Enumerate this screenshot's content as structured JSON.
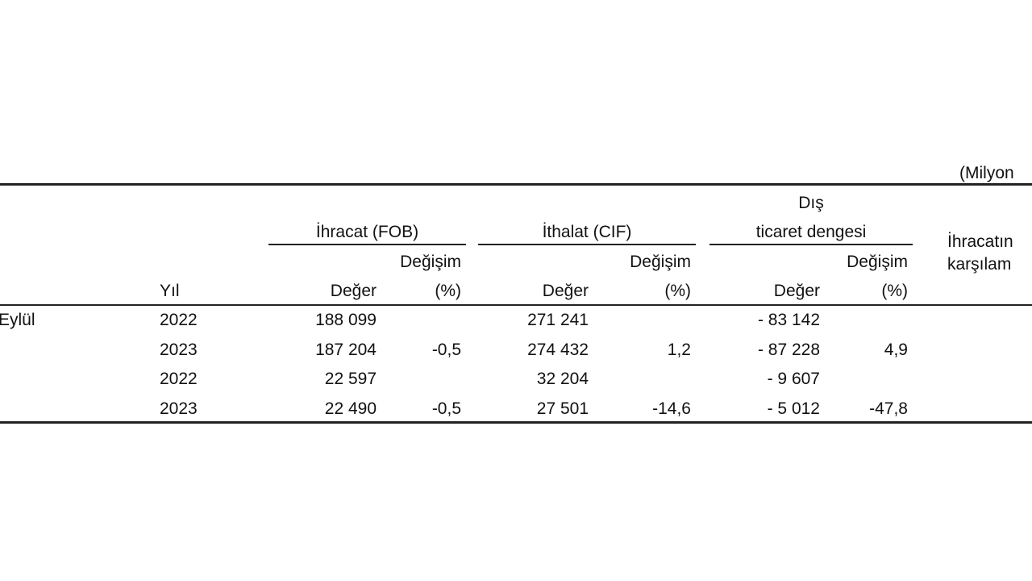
{
  "unit_note": "(Milyon",
  "columns": {
    "year": "Yıl",
    "exports": "İhracat (FOB)",
    "imports": "İthalat (CIF)",
    "balance_line1": "Dış",
    "balance_line2": "ticaret dengesi",
    "value": "Değer",
    "change": "Değişim",
    "percent": "(%)",
    "coverage_line1": "İhracatın",
    "coverage_line2": "karşılam"
  },
  "rows": [
    {
      "period": "Eylül",
      "year": "2022",
      "exp": "188 099",
      "imp": "271 241",
      "bal": "- 83 142"
    },
    {
      "year": "2023",
      "exp": "187 204",
      "exp_chg": "-0,5",
      "imp": "274 432",
      "imp_chg": "1,2",
      "bal": "- 87 228",
      "bal_chg": "4,9"
    },
    {
      "year": "2022",
      "exp": "22 597",
      "imp": "32 204",
      "bal": "- 9 607"
    },
    {
      "year": "2023",
      "exp": "22 490",
      "exp_chg": "-0,5",
      "imp": "27 501",
      "imp_chg": "-14,6",
      "bal": "- 5 012",
      "bal_chg": "-47,8"
    }
  ]
}
